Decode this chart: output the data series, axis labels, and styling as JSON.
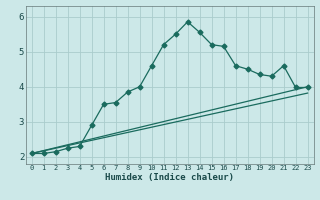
{
  "title": "",
  "xlabel": "Humidex (Indice chaleur)",
  "ylabel": "",
  "bg_color": "#cce8e8",
  "grid_color": "#aacccc",
  "line_color": "#1a6b5e",
  "xlim": [
    -0.5,
    23.5
  ],
  "ylim": [
    1.8,
    6.3
  ],
  "xticks": [
    0,
    1,
    2,
    3,
    4,
    5,
    6,
    7,
    8,
    9,
    10,
    11,
    12,
    13,
    14,
    15,
    16,
    17,
    18,
    19,
    20,
    21,
    22,
    23
  ],
  "yticks": [
    2,
    3,
    4,
    5,
    6
  ],
  "line1_x": [
    0,
    1,
    2,
    3,
    4,
    5,
    6,
    7,
    8,
    9,
    10,
    11,
    12,
    13,
    14,
    15,
    16,
    17,
    18,
    19,
    20,
    21,
    22,
    23
  ],
  "line1_y": [
    2.1,
    2.1,
    2.15,
    2.25,
    2.3,
    2.9,
    3.5,
    3.55,
    3.85,
    4.0,
    4.6,
    5.2,
    5.5,
    5.85,
    5.55,
    5.2,
    5.15,
    4.6,
    4.5,
    4.35,
    4.3,
    4.6,
    3.98,
    3.98
  ],
  "line2_x": [
    0,
    23
  ],
  "line2_y": [
    2.1,
    4.0
  ],
  "line3_x": [
    0,
    23
  ],
  "line3_y": [
    2.1,
    3.82
  ],
  "marker": "D",
  "markersize": 2.5,
  "linewidth": 0.9
}
